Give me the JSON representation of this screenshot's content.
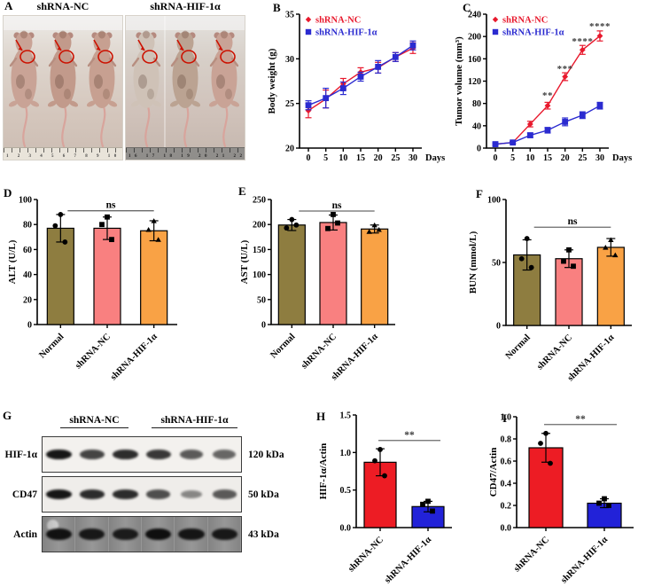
{
  "figure": {
    "background": "#ffffff"
  },
  "colors": {
    "line_red": "#e8192d",
    "line_blue": "#2b2bd0",
    "bar_olive": "#8e7d40",
    "bar_pink": "#f98080",
    "bar_orange": "#f9a245",
    "bar_red": "#ed1c24",
    "bar_blue": "#2222d8",
    "annotation_red": "#cc1100",
    "sig_line": "#6a6a6a",
    "sig_text": "#3d3d3d"
  },
  "chart_data": [
    {
      "id": "B",
      "type": "line",
      "title": "",
      "ylabel": "Body weight (g)",
      "x_unit_label": "Days",
      "x": [
        0,
        5,
        10,
        15,
        20,
        25,
        30
      ],
      "ylim": [
        20,
        35
      ],
      "yticks": [
        20,
        25,
        30,
        35
      ],
      "ytick_labels": [
        "20",
        "25",
        "30",
        "35"
      ],
      "legend_position": "top-left",
      "grid": false,
      "series": [
        {
          "name": "shRNA-NC",
          "color": "#e8192d",
          "marker": "diamond",
          "values": [
            24.2,
            25.5,
            27.2,
            28.5,
            29.0,
            30.2,
            31.2
          ],
          "errors": [
            0.8,
            1.0,
            0.6,
            0.5,
            0.6,
            0.5,
            0.6
          ]
        },
        {
          "name": "shRNA-HIF-1α",
          "color": "#2b2bd0",
          "marker": "square",
          "values": [
            24.8,
            25.6,
            26.7,
            28.0,
            29.1,
            30.2,
            31.5
          ],
          "errors": [
            0.5,
            1.1,
            0.7,
            0.5,
            0.7,
            0.5,
            0.5
          ]
        }
      ],
      "annotations": []
    },
    {
      "id": "C",
      "type": "line",
      "title": "",
      "ylabel": "Tumor volume (mm³)",
      "x_unit_label": "Days",
      "x": [
        0,
        5,
        10,
        15,
        20,
        25,
        30
      ],
      "ylim": [
        0,
        240
      ],
      "yticks": [
        0,
        40,
        80,
        120,
        160,
        200,
        240
      ],
      "ytick_labels": [
        "0",
        "40",
        "80",
        "120",
        "160",
        "200",
        "240"
      ],
      "legend_position": "top-left",
      "grid": false,
      "series": [
        {
          "name": "shRNA-NC",
          "color": "#e8192d",
          "marker": "diamond",
          "values": [
            7,
            10,
            43,
            76,
            128,
            176,
            201
          ],
          "errors": [
            2,
            2,
            5,
            6,
            7,
            8,
            9
          ]
        },
        {
          "name": "shRNA-HIF-1α",
          "color": "#2b2bd0",
          "marker": "square",
          "values": [
            7,
            10,
            23,
            32,
            47,
            59,
            76
          ],
          "errors": [
            2,
            2,
            4,
            5,
            7,
            6,
            6
          ]
        }
      ],
      "annotations": [
        {
          "x": 15,
          "y": 89,
          "label": "**"
        },
        {
          "x": 20,
          "y": 137,
          "label": "***"
        },
        {
          "x": 25,
          "y": 186,
          "label": "****"
        },
        {
          "x": 30,
          "y": 213,
          "label": "****"
        }
      ]
    },
    {
      "id": "D",
      "type": "bar",
      "ylabel": "ALT (U/L)",
      "categories": [
        "Normal",
        "shRNA-NC",
        "shRNA-HIF-1α"
      ],
      "colors": [
        "#8e7d40",
        "#f98080",
        "#f9a245"
      ],
      "values": [
        77,
        77,
        75
      ],
      "errors": [
        11,
        9,
        8
      ],
      "points": [
        [
          88,
          79,
          66
        ],
        [
          86,
          80,
          68
        ],
        [
          83,
          76,
          68
        ]
      ],
      "point_markers": [
        "circle",
        "square",
        "triangle"
      ],
      "ylim": [
        0,
        100
      ],
      "yticks": [
        0,
        20,
        40,
        60,
        80,
        100
      ],
      "ytick_labels": [
        "0",
        "20",
        "40",
        "60",
        "80",
        "100"
      ],
      "sig": {
        "from": 0,
        "to": 2,
        "y": 91,
        "label": "ns"
      }
    },
    {
      "id": "E",
      "type": "bar",
      "ylabel": "AST (U/L)",
      "categories": [
        "Normal",
        "shRNA-NC",
        "shRNA-HIF-1α"
      ],
      "colors": [
        "#8e7d40",
        "#f98080",
        "#f9a245"
      ],
      "values": [
        199,
        204,
        191
      ],
      "errors": [
        11,
        15,
        8
      ],
      "points": [
        [
          210,
          193,
          199
        ],
        [
          220,
          192,
          203
        ],
        [
          199,
          186,
          190
        ]
      ],
      "point_markers": [
        "circle",
        "square",
        "triangle"
      ],
      "ylim": [
        0,
        250
      ],
      "yticks": [
        0,
        50,
        100,
        150,
        200,
        250
      ],
      "ytick_labels": [
        "0",
        "50",
        "100",
        "150",
        "200",
        "250"
      ],
      "sig": {
        "from": 0,
        "to": 2,
        "y": 227,
        "label": "ns"
      }
    },
    {
      "id": "F",
      "type": "bar",
      "ylabel": "BUN (mmol/L)",
      "categories": [
        "Normal",
        "shRNA-NC",
        "shRNA-HIF-1α"
      ],
      "colors": [
        "#8e7d40",
        "#f98080",
        "#f9a245"
      ],
      "values": [
        56,
        53,
        62
      ],
      "errors": [
        12,
        7,
        7
      ],
      "points": [
        [
          69,
          53,
          46
        ],
        [
          60,
          51,
          47
        ],
        [
          68,
          62,
          56
        ]
      ],
      "point_markers": [
        "circle",
        "square",
        "triangle"
      ],
      "ylim": [
        0,
        100
      ],
      "yticks": [
        0,
        50,
        100
      ],
      "ytick_labels": [
        "0",
        "50",
        "100"
      ],
      "sig": {
        "from": 0,
        "to": 2,
        "y": 78,
        "label": "ns"
      }
    },
    {
      "id": "H",
      "type": "bar",
      "ylabel": "HIF-1α/Actin",
      "categories": [
        "shRNA-NC",
        "shRNA-HIF-1α"
      ],
      "colors": [
        "#ed1c24",
        "#2222d8"
      ],
      "values": [
        0.87,
        0.28
      ],
      "errors": [
        0.18,
        0.07
      ],
      "points": [
        [
          1.04,
          0.89,
          0.69
        ],
        [
          0.35,
          0.31,
          0.22
        ]
      ],
      "point_markers": [
        "circle",
        "square"
      ],
      "ylim": [
        0,
        1.5
      ],
      "yticks": [
        0,
        0.5,
        1.0,
        1.5
      ],
      "ytick_labels": [
        "0.0",
        "0.5",
        "1.0",
        "1.5"
      ],
      "sig": {
        "from": 0,
        "to": 1,
        "y": 1.16,
        "label": "**"
      }
    },
    {
      "id": "I",
      "type": "bar",
      "ylabel": "CD47/Actin",
      "categories": [
        "shRNA-NC",
        "shRNA-HIF-1α"
      ],
      "colors": [
        "#ed1c24",
        "#2222d8"
      ],
      "values": [
        0.72,
        0.22
      ],
      "errors": [
        0.13,
        0.04
      ],
      "points": [
        [
          0.85,
          0.76,
          0.58
        ],
        [
          0.26,
          0.22,
          0.2
        ]
      ],
      "point_markers": [
        "circle",
        "square"
      ],
      "ylim": [
        0,
        1.0
      ],
      "yticks": [
        0,
        0.2,
        0.4,
        0.6,
        0.8,
        1.0
      ],
      "ytick_labels": [
        "0.0",
        "0.2",
        "0.4",
        "0.6",
        "0.8",
        "1.0"
      ],
      "sig": {
        "from": 0,
        "to": 1,
        "y": 0.93,
        "label": "**"
      }
    }
  ],
  "panels": {
    "A": {
      "letter": "A",
      "groups": [
        {
          "title": "shRNA-NC",
          "mice": 3,
          "ruler_numbers": "1 2 3 4 5 6 7 8 9 10 11 12 13 14 15"
        },
        {
          "title": "shRNA-HIF-1α",
          "mice": 3,
          "ruler_numbers": "16 17 18 19 20 21 22 23 24 25 26 27"
        }
      ],
      "annotation": "red circle with arrow marking axillary tumor on each mouse"
    },
    "B": {
      "letter": "B"
    },
    "C": {
      "letter": "C"
    },
    "D": {
      "letter": "D"
    },
    "E": {
      "letter": "E"
    },
    "F": {
      "letter": "F"
    },
    "G": {
      "letter": "G",
      "group_titles": [
        "shRNA-NC",
        "shRNA-HIF-1α"
      ],
      "rows": [
        {
          "protein": "HIF-1α",
          "kda": "120 kDa",
          "bg": "#f3f1ee",
          "band_h": 12,
          "streaks": false,
          "bands": [
            0.95,
            0.75,
            0.85,
            0.8,
            0.65,
            0.6
          ]
        },
        {
          "protein": "CD47",
          "kda": "50 kDa",
          "bg": "#efedea",
          "band_h": 11,
          "streaks": false,
          "bands": [
            0.95,
            0.85,
            0.85,
            0.7,
            0.45,
            0.65
          ]
        },
        {
          "protein": "Actin",
          "kda": "43 kDa",
          "bg": "#9c9c9c",
          "band_h": 14,
          "streaks": true,
          "bands": [
            0.95,
            0.9,
            0.88,
            0.97,
            0.92,
            0.9
          ]
        }
      ]
    },
    "H": {
      "letter": "H"
    },
    "I": {
      "letter": "I"
    }
  }
}
